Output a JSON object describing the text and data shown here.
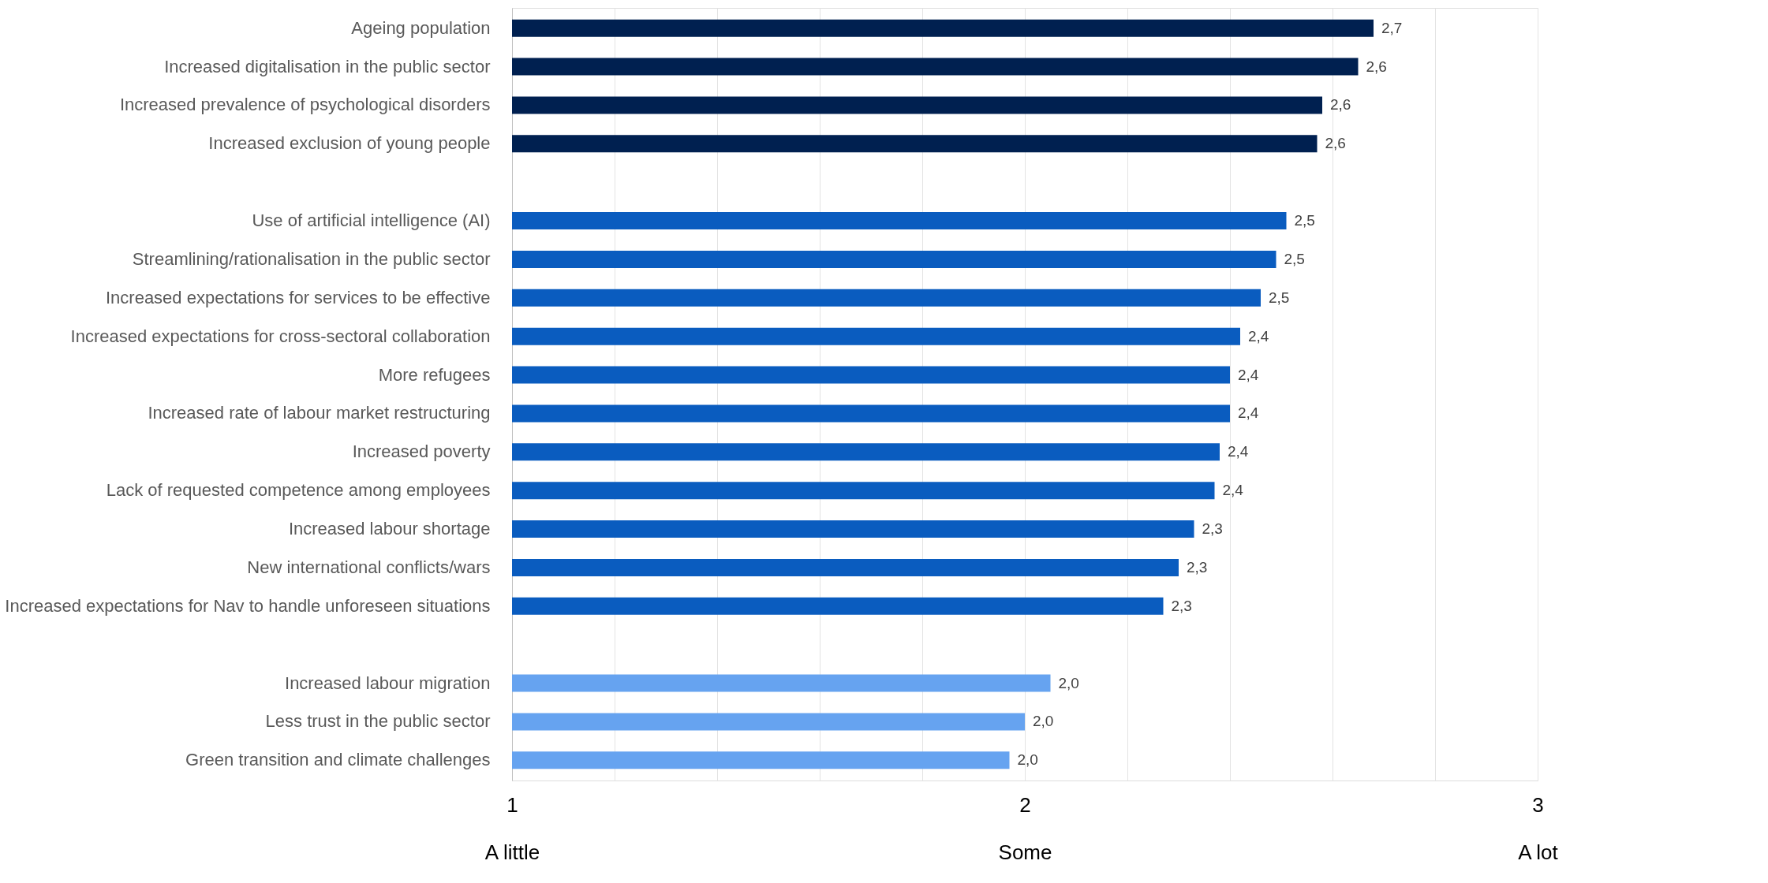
{
  "chart_data": {
    "type": "bar",
    "orientation": "horizontal",
    "categories": [
      "Ageing population",
      "Increased digitalisation in the public sector",
      "Increased prevalence of psychological disorders",
      "Increased exclusion of young people",
      null,
      "Use of artificial intelligence (AI)",
      "Streamlining/rationalisation in the public sector",
      "Increased expectations for services to be effective",
      "Increased expectations for cross-sectoral collaboration",
      "More refugees",
      "Increased rate of labour market restructuring",
      "Increased poverty",
      "Lack of requested competence among employees",
      "Increased labour shortage",
      "New international conflicts/wars",
      "Increased expectations for Nav to handle unforeseen situations",
      null,
      "Increased labour migration",
      "Less trust in the public sector",
      "Green transition and climate challenges"
    ],
    "values": [
      2.68,
      2.65,
      2.58,
      2.57,
      null,
      2.51,
      2.49,
      2.46,
      2.42,
      2.4,
      2.4,
      2.38,
      2.37,
      2.33,
      2.3,
      2.27,
      null,
      2.05,
      2.0,
      1.97
    ],
    "value_labels": [
      "2,7",
      "2,6",
      "2,6",
      "2,6",
      null,
      "2,5",
      "2,5",
      "2,5",
      "2,4",
      "2,4",
      "2,4",
      "2,4",
      "2,4",
      "2,3",
      "2,3",
      "2,3",
      null,
      "2,0",
      "2,0",
      "2,0"
    ],
    "colors": [
      "#002050",
      "#002050",
      "#002050",
      "#002050",
      null,
      "#0a5cbf",
      "#0a5cbf",
      "#0a5cbf",
      "#0a5cbf",
      "#0a5cbf",
      "#0a5cbf",
      "#0a5cbf",
      "#0a5cbf",
      "#0a5cbf",
      "#0a5cbf",
      "#0a5cbf",
      null,
      "#66a3f0",
      "#66a3f0",
      "#66a3f0"
    ],
    "xlim": [
      1,
      3
    ],
    "xticks": [
      {
        "value": 1,
        "label": "1\nA little"
      },
      {
        "value": 1.2,
        "label": null
      },
      {
        "value": 1.4,
        "label": null
      },
      {
        "value": 1.6,
        "label": null
      },
      {
        "value": 1.8,
        "label": null
      },
      {
        "value": 2,
        "label": "2\nSome"
      },
      {
        "value": 2.2,
        "label": null
      },
      {
        "value": 2.4,
        "label": null
      },
      {
        "value": 2.6,
        "label": null
      },
      {
        "value": 2.8,
        "label": null
      },
      {
        "value": 3,
        "label": "3\nA lot"
      }
    ],
    "grid": true
  }
}
